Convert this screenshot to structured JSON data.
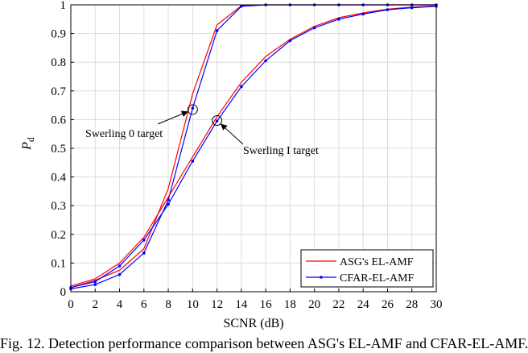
{
  "chart_data": {
    "type": "line",
    "xlabel": "SCNR (dB)",
    "ylabel": "P",
    "ylabel_sub": "d",
    "xlim": [
      0,
      30
    ],
    "ylim": [
      0,
      1
    ],
    "xticks": [
      0,
      2,
      4,
      6,
      8,
      10,
      12,
      14,
      16,
      18,
      20,
      22,
      24,
      26,
      28,
      30
    ],
    "yticks": [
      0,
      0.1,
      0.2,
      0.3,
      0.4,
      0.5,
      0.6,
      0.7,
      0.8,
      0.9,
      1
    ],
    "grid": true,
    "legend_position": "bottom-right",
    "series": [
      {
        "name": "ASG's EL-AMF",
        "group": "Swerling 0",
        "color": "#ff0000",
        "marker": false,
        "x": [
          0,
          2,
          4,
          6,
          8,
          10,
          12,
          14,
          16,
          18,
          20,
          22,
          24,
          26,
          28,
          30
        ],
        "y": [
          0.015,
          0.04,
          0.075,
          0.15,
          0.36,
          0.69,
          0.93,
          0.997,
          1,
          1,
          1,
          1,
          1,
          1,
          1,
          1
        ]
      },
      {
        "name": "CFAR-EL-AMF",
        "group": "Swerling 0",
        "color": "#0000ff",
        "marker": true,
        "x": [
          0,
          2,
          4,
          6,
          8,
          10,
          12,
          14,
          16,
          18,
          20,
          22,
          24,
          26,
          28,
          30
        ],
        "y": [
          0.01,
          0.025,
          0.06,
          0.135,
          0.32,
          0.64,
          0.91,
          0.995,
          1,
          1,
          1,
          1,
          1,
          1,
          1,
          1
        ]
      },
      {
        "name": "ASG's EL-AMF",
        "group": "Swerling I",
        "color": "#ff0000",
        "marker": false,
        "x": [
          0,
          2,
          4,
          6,
          8,
          10,
          12,
          14,
          16,
          18,
          20,
          22,
          24,
          26,
          28,
          30
        ],
        "y": [
          0.02,
          0.045,
          0.1,
          0.19,
          0.33,
          0.47,
          0.61,
          0.73,
          0.82,
          0.88,
          0.925,
          0.955,
          0.972,
          0.985,
          0.992,
          0.996
        ]
      },
      {
        "name": "CFAR-EL-AMF",
        "group": "Swerling I",
        "color": "#0000ff",
        "marker": true,
        "x": [
          0,
          2,
          4,
          6,
          8,
          10,
          12,
          14,
          16,
          18,
          20,
          22,
          24,
          26,
          28,
          30
        ],
        "y": [
          0.015,
          0.035,
          0.09,
          0.18,
          0.305,
          0.455,
          0.595,
          0.715,
          0.805,
          0.875,
          0.92,
          0.95,
          0.968,
          0.983,
          0.99,
          0.995
        ]
      }
    ],
    "legend": [
      {
        "label": "ASG's EL-AMF",
        "color": "#ff0000",
        "marker": false
      },
      {
        "label": "CFAR-EL-AMF",
        "color": "#0000ff",
        "marker": true
      }
    ],
    "annotations": [
      {
        "text": "Swerling 0 target",
        "target_x": 10,
        "target_y": 0.635
      },
      {
        "text": "Swerling I target",
        "target_x": 12,
        "target_y": 0.597
      }
    ]
  },
  "caption": "Fig. 12. Detection performance comparison between ASG's EL-AMF and CFAR-EL-AMF."
}
